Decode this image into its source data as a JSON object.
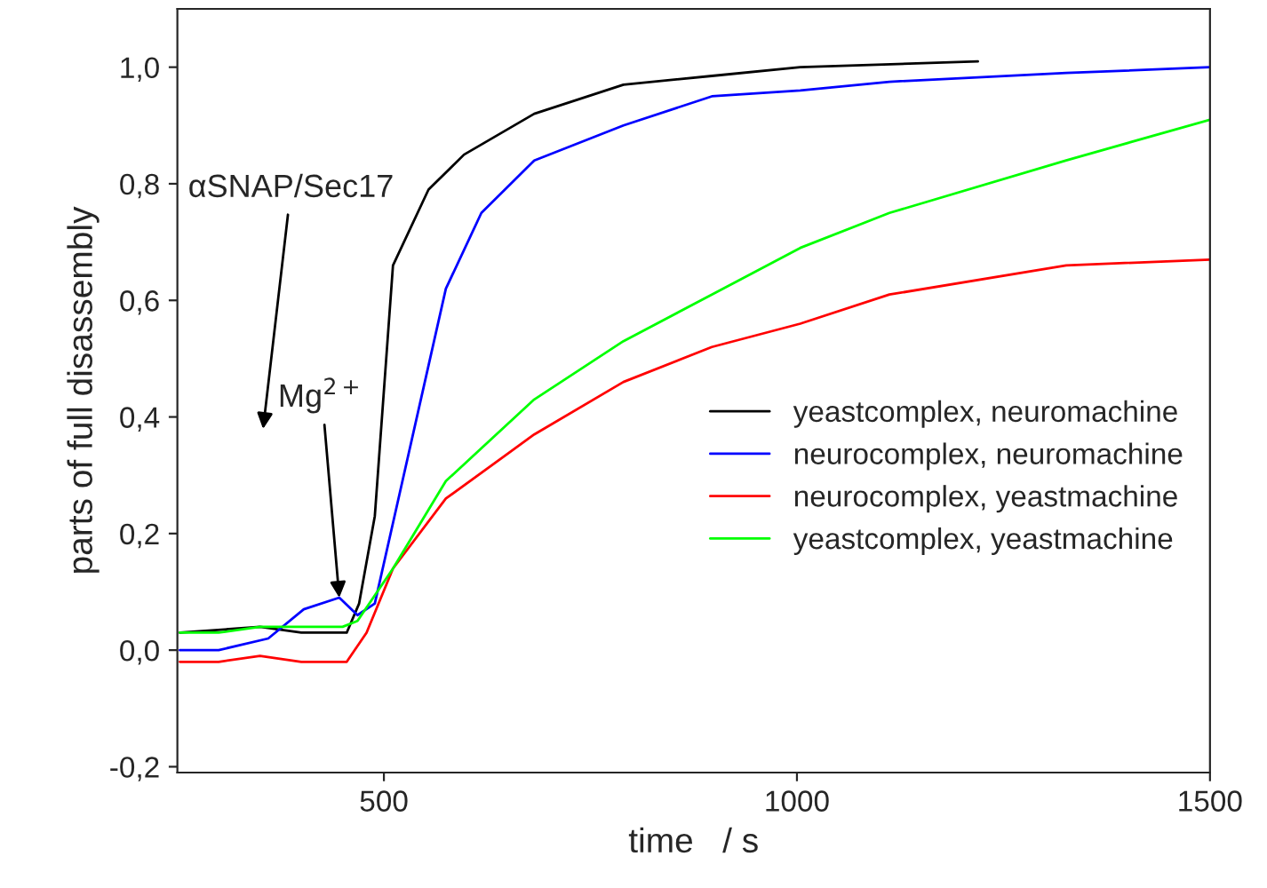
{
  "chart_data": {
    "type": "line",
    "xlabel": "time   / s",
    "ylabel": "parts of full disassembly",
    "xlim": [
      250,
      1500
    ],
    "ylim": [
      -0.21,
      1.1
    ],
    "xticks": [
      500,
      1000,
      1500
    ],
    "yticks": [
      {
        "value": -0.2,
        "label": "-0,2"
      },
      {
        "value": 0.0,
        "label": "0,0"
      },
      {
        "value": 0.2,
        "label": "0,2"
      },
      {
        "value": 0.4,
        "label": "0,4"
      },
      {
        "value": 0.6,
        "label": "0,6"
      },
      {
        "value": 0.8,
        "label": "0,8"
      },
      {
        "value": 1.0,
        "label": "1,0"
      }
    ],
    "grid": false,
    "legend": "bottom right",
    "series": [
      {
        "name": "yeastcomplex, neuromachine",
        "color": "#000000",
        "x": [
          253,
          350,
          400,
          455,
          470,
          489,
          511,
          554,
          597,
          682,
          790,
          897,
          1004,
          1219
        ],
        "values": [
          0.03,
          0.04,
          0.03,
          0.03,
          0.08,
          0.23,
          0.66,
          0.79,
          0.85,
          0.92,
          0.97,
          0.985,
          1.0,
          1.01
        ]
      },
      {
        "name": "neurocomplex, neuromachine",
        "color": "#0000ff",
        "x": [
          253,
          300,
          360,
          403,
          446,
          468,
          489,
          532,
          575,
          618,
          682,
          790,
          897,
          1004,
          1112,
          1326,
          1500
        ],
        "values": [
          0.0,
          0.0,
          0.02,
          0.07,
          0.09,
          0.06,
          0.08,
          0.35,
          0.62,
          0.75,
          0.84,
          0.9,
          0.95,
          0.96,
          0.975,
          0.99,
          1.0
        ]
      },
      {
        "name": "neurocomplex, yeastmachine",
        "color": "#ff0000",
        "x": [
          253,
          300,
          350,
          400,
          455,
          479,
          511,
          575,
          682,
          790,
          897,
          1004,
          1112,
          1326,
          1500
        ],
        "values": [
          -0.02,
          -0.02,
          -0.01,
          -0.02,
          -0.02,
          0.03,
          0.14,
          0.26,
          0.37,
          0.46,
          0.52,
          0.56,
          0.61,
          0.66,
          0.67
        ]
      },
      {
        "name": "yeastcomplex, yeastmachine",
        "color": "#00ff00",
        "x": [
          253,
          300,
          350,
          400,
          450,
          468,
          511,
          575,
          682,
          790,
          897,
          1004,
          1112,
          1326,
          1500
        ],
        "values": [
          0.03,
          0.03,
          0.04,
          0.04,
          0.04,
          0.05,
          0.14,
          0.29,
          0.43,
          0.53,
          0.61,
          0.69,
          0.75,
          0.84,
          0.91
        ]
      }
    ],
    "annotations": [
      "αSNAP/Sec17",
      {
        "text": "Mg$^{2+}$",
        "x": 446,
        "y": 0.09
      }
    ]
  }
}
